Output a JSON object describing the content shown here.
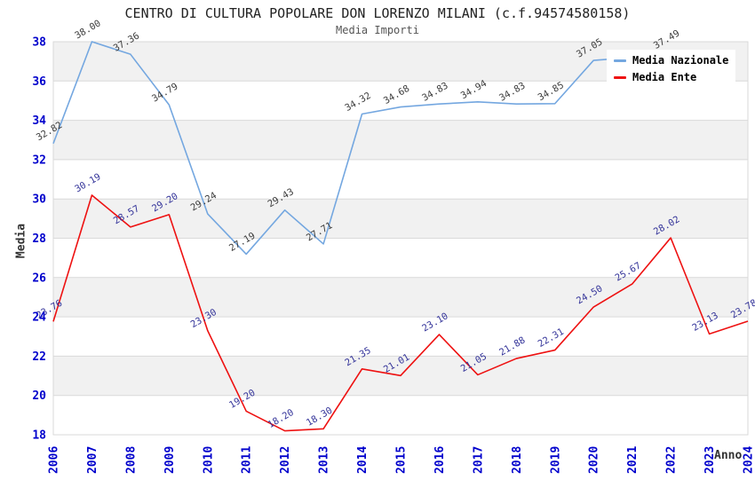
{
  "header": {
    "title": "CENTRO DI CULTURA POPOLARE DON LORENZO MILANI (c.f.94574580158)",
    "subtitle": "Media Importi"
  },
  "chart_data": {
    "type": "line",
    "title": "CENTRO DI CULTURA POPOLARE DON LORENZO MILANI (c.f.94574580158)",
    "subtitle": "Media Importi",
    "xlabel": "Anno",
    "ylabel": "Media",
    "ylim": [
      18,
      38
    ],
    "ytick_step": 2,
    "y_ticks": [
      38,
      36,
      34,
      32,
      30,
      28,
      26,
      24,
      22,
      20,
      18
    ],
    "grid": "horizontal-gridlines-with-alternating-bands",
    "legend_position": "top-right",
    "categories": [
      "2006",
      "2007",
      "2008",
      "2009",
      "2010",
      "2011",
      "2012",
      "2013",
      "2014",
      "2015",
      "2016",
      "2017",
      "2018",
      "2019",
      "2020",
      "2021",
      "2022",
      "2023",
      "2024"
    ],
    "series": [
      {
        "name": "Media Nazionale",
        "color": "#74a7e0",
        "label_color": "#3c3c3c",
        "values": [
          32.82,
          38.0,
          37.36,
          34.79,
          29.24,
          27.19,
          29.43,
          27.71,
          34.32,
          34.68,
          34.83,
          34.94,
          34.83,
          34.85,
          37.05,
          37.2,
          37.49,
          null,
          null
        ],
        "labels": [
          "32.82",
          "38.00",
          "37.36",
          "34.79",
          "29.24",
          "27.19",
          "29.43",
          "27.71",
          "34.32",
          "34.68",
          "34.83",
          "34.94",
          "34.83",
          "34.85",
          "37.05",
          "",
          "37.49",
          "",
          ""
        ]
      },
      {
        "name": "Media Ente",
        "color": "#ee1111",
        "label_color": "#333399",
        "values": [
          23.76,
          30.19,
          28.57,
          29.2,
          23.3,
          19.2,
          18.2,
          18.3,
          21.35,
          21.01,
          23.1,
          21.05,
          21.88,
          22.31,
          24.5,
          25.67,
          28.02,
          23.13,
          23.78
        ],
        "labels": [
          "23.76",
          "30.19",
          "28.57",
          "29.20",
          "23.30",
          "19.20",
          "18.20",
          "18.30",
          "21.35",
          "21.01",
          "23.10",
          "21.05",
          "21.88",
          "22.31",
          "24.50",
          "25.67",
          "28.02",
          "23.13",
          "23.78"
        ]
      }
    ],
    "colors": {
      "grid": "#d9d9d9",
      "band_fill": "#f1f1f1",
      "tick": "#0000cc"
    }
  }
}
